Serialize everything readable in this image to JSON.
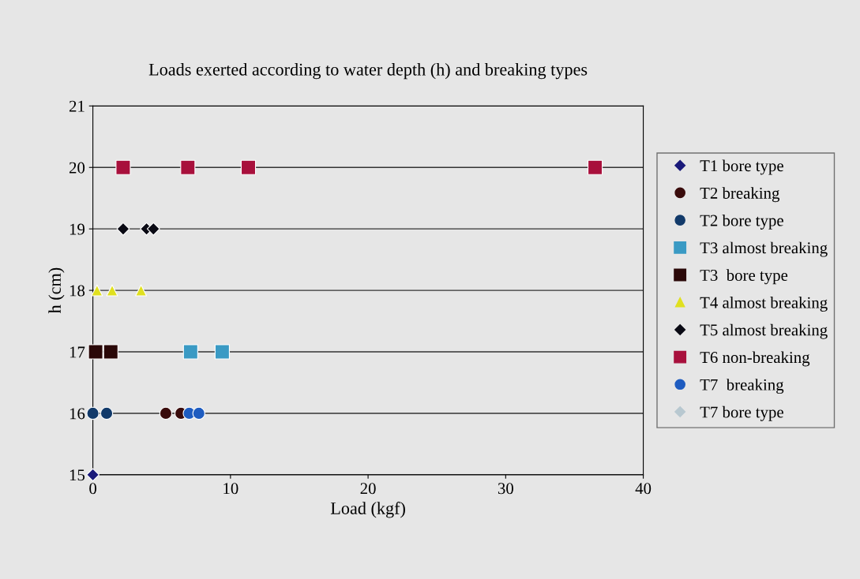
{
  "chart_data": {
    "type": "scatter",
    "title": "Loads exerted according to water depth (h) and breaking types",
    "xlabel": "Load (kgf)",
    "ylabel": "h (cm)",
    "xlim": [
      0,
      40
    ],
    "xticks": [
      0,
      10,
      20,
      30,
      40
    ],
    "ylim": [
      15,
      21
    ],
    "yticks": [
      15,
      16,
      17,
      18,
      19,
      20,
      21
    ],
    "grid": "y",
    "legend": "right",
    "series": [
      {
        "name": "T1 bore type",
        "color": "#1a1a7a",
        "marker": "diamond",
        "x": [
          0
        ],
        "values": [
          15
        ]
      },
      {
        "name": "T2 breaking",
        "color": "#3a0c0c",
        "marker": "circle",
        "x": [
          5.3,
          6.4
        ],
        "values": [
          16,
          16
        ]
      },
      {
        "name": "T2 bore type",
        "color": "#123a6a",
        "marker": "circle",
        "x": [
          0,
          1.0
        ],
        "values": [
          16,
          16
        ]
      },
      {
        "name": "T3 almost breaking",
        "color": "#3a9ac4",
        "marker": "square",
        "x": [
          7.1,
          9.4
        ],
        "values": [
          17,
          17
        ]
      },
      {
        "name": "T3  bore type",
        "color": "#2a0808",
        "marker": "square",
        "x": [
          0.2,
          1.3
        ],
        "values": [
          17,
          17
        ]
      },
      {
        "name": "T4 almost breaking",
        "color": "#e0e020",
        "marker": "triangle",
        "x": [
          0.3,
          1.4,
          3.5
        ],
        "values": [
          18,
          18,
          18
        ]
      },
      {
        "name": "T5 almost breaking",
        "color": "#0a0a14",
        "marker": "diamond",
        "x": [
          2.2,
          3.9,
          4.4
        ],
        "values": [
          19,
          19,
          19
        ]
      },
      {
        "name": "T6 non-breaking",
        "color": "#a8103c",
        "marker": "square",
        "x": [
          2.2,
          6.9,
          11.3,
          36.5
        ],
        "values": [
          20,
          20,
          20,
          20
        ]
      },
      {
        "name": "T7  breaking",
        "color": "#1e5cc0",
        "marker": "circle",
        "x": [
          7.0,
          7.7
        ],
        "values": [
          16,
          16
        ]
      },
      {
        "name": "T7 bore type",
        "color": "#b8c8d0",
        "marker": "diamond"
      }
    ]
  }
}
